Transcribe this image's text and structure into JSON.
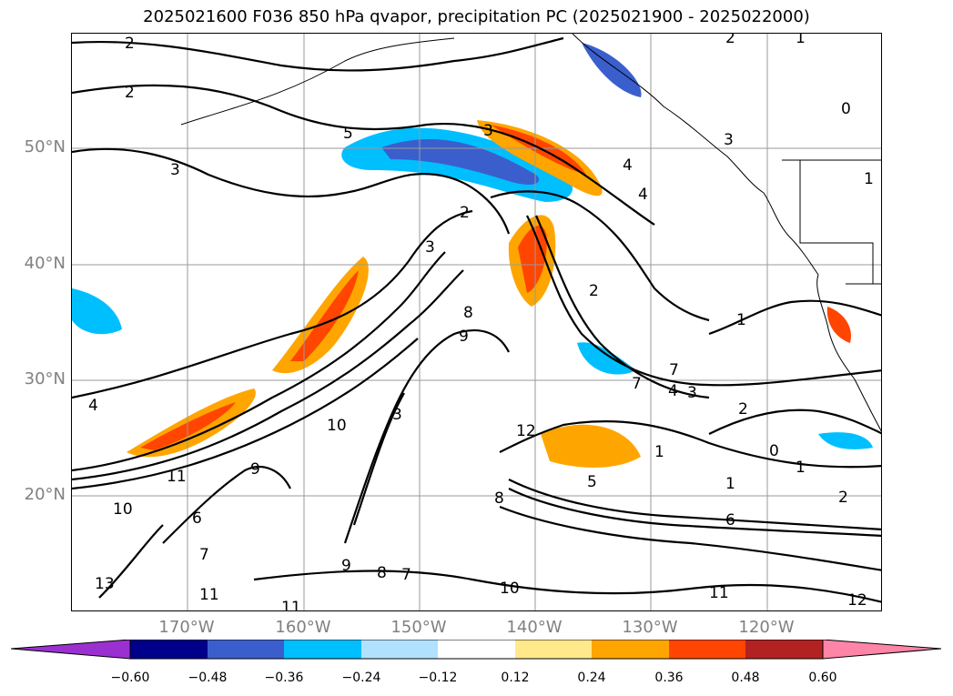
{
  "title": "2025021600 F036 850 hPa qvapor, precipitation PC (2025021900 - 2025022000)",
  "latitude_labels": [
    "50°N",
    "40°N",
    "30°N",
    "20°N"
  ],
  "longitude_labels": [
    "170°W",
    "160°W",
    "150°W",
    "140°W",
    "130°W",
    "120°W"
  ],
  "colorbar": {
    "ticks": [
      "−0.60",
      "−0.48",
      "−0.36",
      "−0.24",
      "−0.12",
      "0.12",
      "0.24",
      "0.36",
      "0.48",
      "0.60"
    ],
    "colors": [
      "#9b30d0",
      "#00008b",
      "#3a5fcd",
      "#00bfff",
      "#b0e2ff",
      "#ffffff",
      "#ffe98a",
      "#ffa500",
      "#ff4500",
      "#b22222",
      "#ff85a8"
    ]
  },
  "contour_labels": [
    "2",
    "2",
    "3",
    "5",
    "3",
    "2",
    "3",
    "4",
    "4",
    "2",
    "8",
    "9",
    "7",
    "7",
    "4",
    "3",
    "2",
    "1",
    "0",
    "1",
    "6",
    "5",
    "8",
    "3",
    "10",
    "12",
    "11",
    "9",
    "10",
    "6",
    "7",
    "13",
    "11",
    "9",
    "8",
    "7",
    "10",
    "11",
    "12",
    "11",
    "2",
    "1",
    "3",
    "2",
    "4",
    "1",
    "0",
    "1",
    "1"
  ]
}
